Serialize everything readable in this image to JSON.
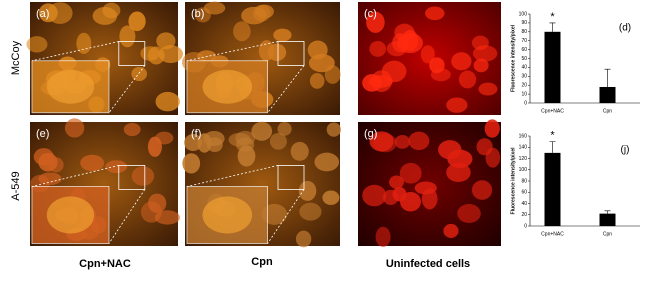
{
  "row_labels": [
    "McCoy",
    "A-549"
  ],
  "column_labels": [
    "Cpn+NAC",
    "Cpn",
    "Uninfected cells"
  ],
  "panels": [
    {
      "label": "(a)"
    },
    {
      "label": "(b)"
    },
    {
      "label": "(c)"
    },
    {
      "label": "(e)"
    },
    {
      "label": "(f)"
    },
    {
      "label": "(g)"
    }
  ],
  "chart_data": [
    {
      "type": "bar",
      "panel_label": "(d)",
      "y_label": "Fluorescence intensity/pixel",
      "annotation": "*",
      "categories": [
        "Cpn+NAC",
        "Cpn"
      ],
      "values": [
        80,
        18
      ],
      "errors": [
        10,
        20
      ],
      "color": "#000000",
      "ylim": [
        0,
        100
      ],
      "yticks": [
        0,
        10,
        20,
        30,
        40,
        50,
        60,
        70,
        80,
        90,
        100
      ]
    },
    {
      "type": "bar",
      "panel_label": "(j)",
      "y_label": "Fluorescence intensity/pixel",
      "annotation": "*",
      "categories": [
        "Cpn+NAC",
        "Cpn"
      ],
      "values": [
        130,
        22
      ],
      "errors": [
        20,
        5
      ],
      "color": "#000000",
      "ylim": [
        0,
        160
      ],
      "yticks": [
        0,
        20,
        40,
        60,
        80,
        100,
        120,
        140,
        160
      ]
    }
  ]
}
